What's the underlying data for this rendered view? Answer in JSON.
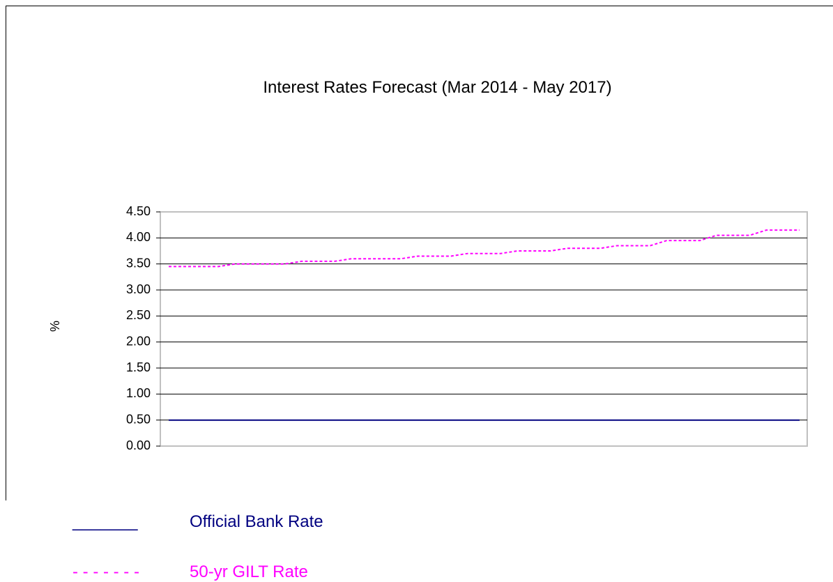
{
  "colors": {
    "bank": "#000080",
    "gilt": "#ff00ff",
    "grid": "#000000",
    "plot_border": "#c0c0c0"
  },
  "chart_data": {
    "type": "line",
    "title": "Interest Rates Forecast (Mar 2014 - May 2017)",
    "xlabel": "",
    "ylabel": "%",
    "ylim": [
      0,
      4.5
    ],
    "yticks": [
      "0.00",
      "0.50",
      "1.00",
      "1.50",
      "2.00",
      "2.50",
      "3.00",
      "3.50",
      "4.00",
      "4.50"
    ],
    "grid": true,
    "legend_position": "bottom-left",
    "series": [
      {
        "name": "Official Bank Rate",
        "style": "solid",
        "values": [
          0.5,
          0.5,
          0.5,
          0.5,
          0.5,
          0.5,
          0.5,
          0.5,
          0.5,
          0.5,
          0.5,
          0.5,
          0.5,
          0.5,
          0.5,
          0.5,
          0.5,
          0.5,
          0.5,
          0.5,
          0.5,
          0.5,
          0.5,
          0.5,
          0.5,
          0.5,
          0.5,
          0.5,
          0.5,
          0.5,
          0.5,
          0.5,
          0.5,
          0.5,
          0.5,
          0.5,
          0.5,
          0.5,
          0.5
        ]
      },
      {
        "name": "50-yr GILT Rate",
        "style": "dashed",
        "values": [
          3.45,
          3.45,
          3.45,
          3.45,
          3.5,
          3.5,
          3.5,
          3.5,
          3.55,
          3.55,
          3.55,
          3.6,
          3.6,
          3.6,
          3.6,
          3.65,
          3.65,
          3.65,
          3.7,
          3.7,
          3.7,
          3.75,
          3.75,
          3.75,
          3.8,
          3.8,
          3.8,
          3.85,
          3.85,
          3.85,
          3.95,
          3.95,
          3.95,
          4.05,
          4.05,
          4.05,
          4.15,
          4.15,
          4.15
        ]
      }
    ]
  },
  "legend": {
    "items": [
      {
        "symbol": "_______",
        "label": "Official Bank Rate"
      },
      {
        "symbol": "- - - - - - -",
        "label": "50-yr GILT Rate"
      }
    ]
  }
}
